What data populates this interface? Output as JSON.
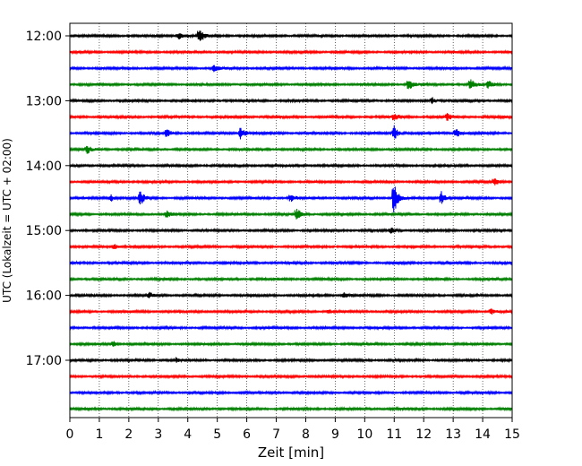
{
  "chart_data": {
    "type": "line",
    "title": "",
    "xlabel": "Zeit  [min]",
    "ylabel": "UTC (Lokalzeit = UTC + 02:00)",
    "xlim": [
      0,
      15
    ],
    "xticks": [
      0,
      1,
      2,
      3,
      4,
      5,
      6,
      7,
      8,
      9,
      10,
      11,
      12,
      13,
      14,
      15
    ],
    "x_tick_labels": [
      "0",
      "1",
      "2",
      "3",
      "4",
      "5",
      "6",
      "7",
      "8",
      "9",
      "10",
      "11",
      "12",
      "13",
      "14",
      "15"
    ],
    "y_tick_labels": [
      "12:00",
      "13:00",
      "14:00",
      "15:00",
      "16:00",
      "17:00"
    ],
    "trace_interval_minutes": 15,
    "start_time": "12:00",
    "trace_count": 24,
    "color_cycle": [
      "#000000",
      "#ff0000",
      "#0000ff",
      "#008000"
    ],
    "vertical_grid": "dotted",
    "events": [
      {
        "trace": 0,
        "minute": 4.4,
        "amplitude": 1.3
      },
      {
        "trace": 0,
        "minute": 3.7,
        "amplitude": 0.5
      },
      {
        "trace": 2,
        "minute": 4.9,
        "amplitude": 0.5
      },
      {
        "trace": 3,
        "minute": 11.5,
        "amplitude": 0.9
      },
      {
        "trace": 3,
        "minute": 13.6,
        "amplitude": 0.8
      },
      {
        "trace": 3,
        "minute": 14.2,
        "amplitude": 0.6
      },
      {
        "trace": 4,
        "minute": 12.3,
        "amplitude": 0.5
      },
      {
        "trace": 5,
        "minute": 11.0,
        "amplitude": 0.6
      },
      {
        "trace": 5,
        "minute": 12.8,
        "amplitude": 0.5
      },
      {
        "trace": 6,
        "minute": 5.8,
        "amplitude": 1.0
      },
      {
        "trace": 6,
        "minute": 3.3,
        "amplitude": 0.6
      },
      {
        "trace": 6,
        "minute": 11.0,
        "amplitude": 1.2
      },
      {
        "trace": 6,
        "minute": 13.1,
        "amplitude": 0.8
      },
      {
        "trace": 7,
        "minute": 0.6,
        "amplitude": 0.6
      },
      {
        "trace": 9,
        "minute": 14.4,
        "amplitude": 0.5
      },
      {
        "trace": 10,
        "minute": 2.4,
        "amplitude": 1.1
      },
      {
        "trace": 10,
        "minute": 1.4,
        "amplitude": 0.5
      },
      {
        "trace": 10,
        "minute": 7.5,
        "amplitude": 0.6
      },
      {
        "trace": 10,
        "minute": 11.0,
        "amplitude": 2.6
      },
      {
        "trace": 10,
        "minute": 12.6,
        "amplitude": 1.0
      },
      {
        "trace": 11,
        "minute": 7.7,
        "amplitude": 0.9
      },
      {
        "trace": 11,
        "minute": 3.3,
        "amplitude": 0.5
      },
      {
        "trace": 12,
        "minute": 10.9,
        "amplitude": 0.4
      },
      {
        "trace": 13,
        "minute": 1.5,
        "amplitude": 0.4
      },
      {
        "trace": 16,
        "minute": 2.7,
        "amplitude": 0.4
      },
      {
        "trace": 16,
        "minute": 9.3,
        "amplitude": 0.4
      },
      {
        "trace": 17,
        "minute": 8.8,
        "amplitude": 0.3
      },
      {
        "trace": 17,
        "minute": 14.3,
        "amplitude": 0.4
      },
      {
        "trace": 19,
        "minute": 1.5,
        "amplitude": 0.4
      },
      {
        "trace": 20,
        "minute": 3.6,
        "amplitude": 0.3
      }
    ]
  }
}
